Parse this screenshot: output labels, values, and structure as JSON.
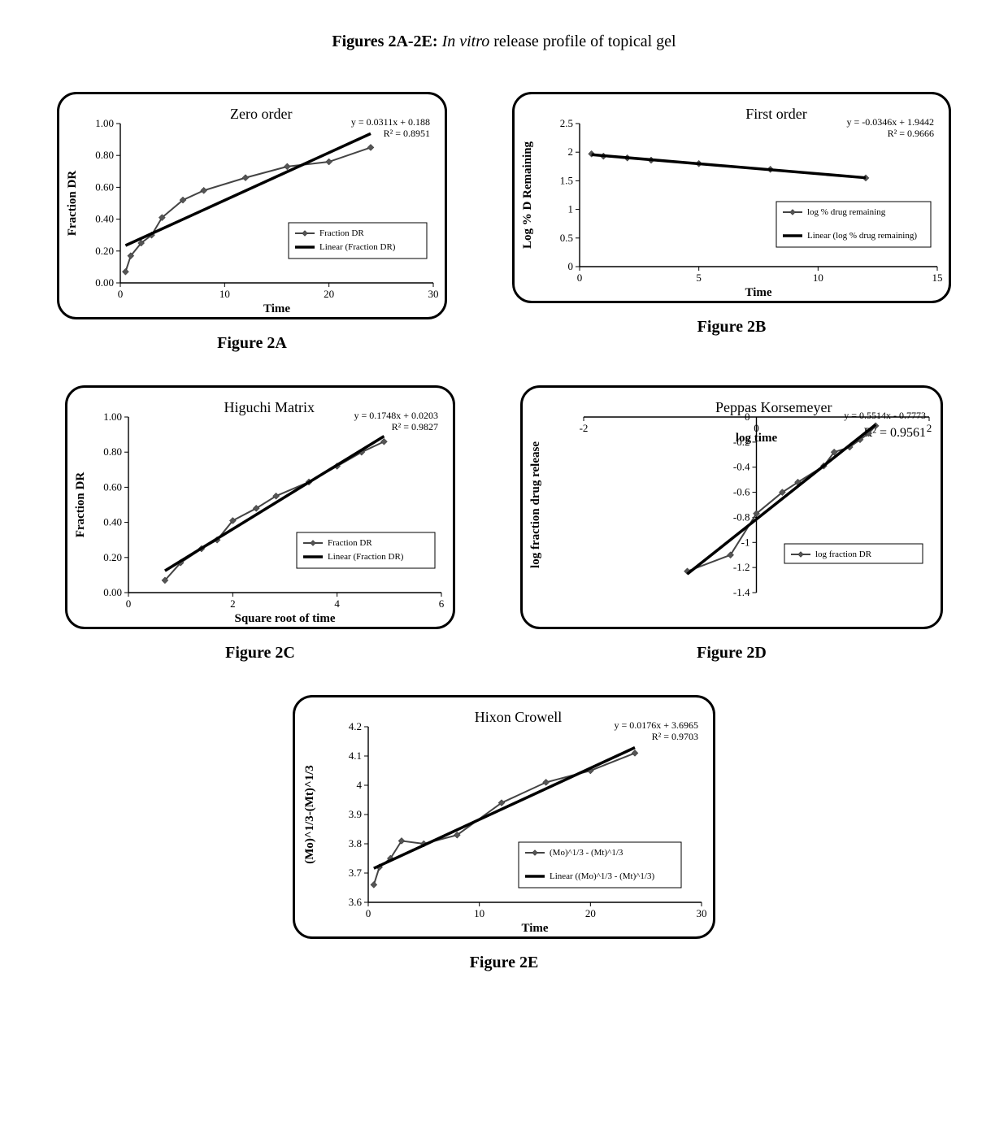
{
  "page_title_bold": "Figures 2A-2E:",
  "page_title_italic": "In vitro",
  "page_title_rest": " release profile of topical gel",
  "global": {
    "data_line_color": "#555555",
    "fit_line_color": "#000000",
    "marker_color": "#666666",
    "border_color": "#000000",
    "background": "#ffffff"
  },
  "panels": {
    "A": {
      "caption": "Figure 2A",
      "title": "Zero order",
      "eq": "y = 0.0311x + 0.188",
      "r2": "R² = 0.8951",
      "xlabel": "Time",
      "ylabel": "Fraction DR",
      "xticks": [
        0,
        10,
        20,
        30
      ],
      "yticks": [
        "0.00",
        "0.20",
        "0.40",
        "0.60",
        "0.80",
        "1.00"
      ],
      "xlim": [
        0,
        30
      ],
      "ylim": [
        0,
        1.0
      ],
      "series": {
        "x": [
          0.5,
          1,
          2,
          3,
          4,
          6,
          8,
          12,
          16,
          20,
          24
        ],
        "y": [
          0.07,
          0.17,
          0.25,
          0.3,
          0.41,
          0.52,
          0.58,
          0.66,
          0.73,
          0.76,
          0.85
        ]
      },
      "legend": [
        "Fraction DR",
        "Linear (Fraction DR)"
      ]
    },
    "B": {
      "caption": "Figure 2B",
      "title": "First order",
      "eq": "y = -0.0346x + 1.9442",
      "r2": "R² = 0.9666",
      "xlabel": "Time",
      "ylabel": "Log  % D Remaining",
      "xticks": [
        0,
        5,
        10,
        15
      ],
      "yticks": [
        "0",
        "0.5",
        "1",
        "1.5",
        "2",
        "2.5"
      ],
      "xlim": [
        0,
        15
      ],
      "ylim": [
        0,
        2.5
      ],
      "series": {
        "x": [
          0.5,
          1,
          2,
          3,
          5,
          8,
          12
        ],
        "y": [
          1.97,
          1.93,
          1.9,
          1.86,
          1.8,
          1.7,
          1.55
        ]
      },
      "legend": [
        "log % drug remaining",
        "Linear (log % drug remaining)"
      ]
    },
    "C": {
      "caption": "Figure 2C",
      "title": "Higuchi Matrix",
      "eq": "y = 0.1748x + 0.0203",
      "r2": "R² = 0.9827",
      "xlabel": "Square root of time",
      "ylabel": "Fraction DR",
      "xticks": [
        0,
        2,
        4,
        6
      ],
      "yticks": [
        "0.00",
        "0.20",
        "0.40",
        "0.60",
        "0.80",
        "1.00"
      ],
      "xlim": [
        0,
        6
      ],
      "ylim": [
        0,
        1.0
      ],
      "series": {
        "x": [
          0.7,
          1.0,
          1.4,
          1.7,
          2.0,
          2.45,
          2.83,
          3.46,
          4.0,
          4.47,
          4.9
        ],
        "y": [
          0.07,
          0.17,
          0.25,
          0.3,
          0.41,
          0.48,
          0.55,
          0.63,
          0.72,
          0.8,
          0.86
        ]
      },
      "legend": [
        "Fraction DR",
        "Linear (Fraction DR)"
      ]
    },
    "D": {
      "caption": "Figure 2D",
      "title": "Peppas Korsemeyer",
      "eq": "y = 0.5514x - 0.7773",
      "r2": "R² = 0.9561",
      "xlabel": "log time",
      "ylabel": "log fraction drug release",
      "xticks": [
        -2,
        0,
        2
      ],
      "yticks": [
        "-1.4",
        "-1.2",
        "-1",
        "-0.8",
        "-0.6",
        "-0.4",
        "-0.2",
        "0"
      ],
      "xlim": [
        -2,
        2
      ],
      "ylim": [
        -1.4,
        0
      ],
      "series": {
        "x": [
          -0.8,
          -0.3,
          0.0,
          0.3,
          0.48,
          0.78,
          0.9,
          1.08,
          1.2,
          1.3,
          1.38
        ],
        "y": [
          -1.23,
          -1.1,
          -0.77,
          -0.6,
          -0.52,
          -0.39,
          -0.28,
          -0.24,
          -0.18,
          -0.13,
          -0.07
        ]
      },
      "legend": [
        "log fraction DR"
      ]
    },
    "E": {
      "caption": "Figure 2E",
      "title": "Hixon Crowell",
      "eq": "y = 0.0176x + 3.6965",
      "r2": "R² = 0.9703",
      "xlabel": "Time",
      "ylabel": "(Mo)^1/3-(Mt)^1/3",
      "xticks": [
        0,
        10,
        20,
        30
      ],
      "yticks": [
        "3.6",
        "3.7",
        "3.8",
        "3.9",
        "4",
        "4.1",
        "4.2"
      ],
      "xlim": [
        0,
        30
      ],
      "ylim": [
        3.6,
        4.2
      ],
      "series": {
        "x": [
          0.5,
          1,
          2,
          3,
          5,
          8,
          12,
          16,
          20,
          24
        ],
        "y": [
          3.66,
          3.72,
          3.75,
          3.81,
          3.8,
          3.83,
          3.94,
          4.01,
          4.05,
          4.11
        ]
      },
      "legend": [
        "(Mo)^1/3 - (Mt)^1/3",
        "Linear ((Mo)^1/3 - (Mt)^1/3)"
      ]
    }
  }
}
